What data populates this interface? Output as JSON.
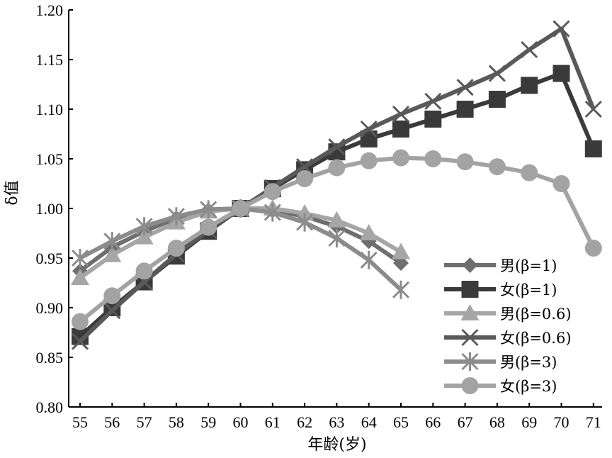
{
  "chart_data": {
    "type": "line",
    "xlabel": "年龄(岁)",
    "ylabel": "δ值",
    "xlim": [
      55,
      71
    ],
    "ylim": [
      0.8,
      1.2
    ],
    "x_ticks": [
      "55",
      "56",
      "57",
      "58",
      "59",
      "60",
      "61",
      "62",
      "63",
      "64",
      "65",
      "66",
      "67",
      "68",
      "69",
      "70",
      "71"
    ],
    "y_ticks": [
      "0.80",
      "0.85",
      "0.90",
      "0.95",
      "1.00",
      "1.05",
      "1.10",
      "1.15",
      "1.20"
    ],
    "grid": false,
    "legend_position": "right",
    "series": [
      {
        "name": "男(β=1)",
        "color": "#6e6e6e",
        "marker": "diamond",
        "x": [
          55,
          56,
          57,
          58,
          59,
          60,
          61,
          62,
          63,
          64,
          65
        ],
        "values": [
          0.937,
          0.961,
          0.977,
          0.99,
          0.998,
          1.0,
          0.998,
          0.992,
          0.982,
          0.967,
          0.945
        ]
      },
      {
        "name": "女(β=1)",
        "color": "#3a3a3a",
        "marker": "square",
        "x": [
          55,
          56,
          57,
          58,
          59,
          60,
          61,
          62,
          63,
          64,
          65,
          66,
          67,
          68,
          69,
          70,
          71
        ],
        "values": [
          0.871,
          0.9,
          0.926,
          0.952,
          0.977,
          1.0,
          1.02,
          1.039,
          1.057,
          1.07,
          1.08,
          1.09,
          1.1,
          1.11,
          1.124,
          1.136,
          1.06
        ]
      },
      {
        "name": "男(β=0.6)",
        "color": "#a6a6a6",
        "marker": "triangle",
        "x": [
          55,
          56,
          57,
          58,
          59,
          60,
          61,
          62,
          63,
          64,
          65
        ],
        "values": [
          0.93,
          0.953,
          0.971,
          0.986,
          0.997,
          1.0,
          1.0,
          0.995,
          0.988,
          0.975,
          0.956
        ]
      },
      {
        "name": "女(β=0.6)",
        "color": "#595959",
        "marker": "x",
        "x": [
          55,
          56,
          57,
          58,
          59,
          60,
          61,
          62,
          63,
          64,
          65,
          66,
          67,
          68,
          69,
          70,
          71
        ],
        "values": [
          0.866,
          0.897,
          0.926,
          0.954,
          0.978,
          1.0,
          1.021,
          1.042,
          1.062,
          1.08,
          1.095,
          1.108,
          1.122,
          1.136,
          1.16,
          1.181,
          1.1
        ]
      },
      {
        "name": "男(β=3)",
        "color": "#8c8c8c",
        "marker": "asterisk",
        "x": [
          55,
          56,
          57,
          58,
          59,
          60,
          61,
          62,
          63,
          64,
          65
        ],
        "values": [
          0.95,
          0.967,
          0.982,
          0.992,
          0.999,
          1.0,
          0.996,
          0.986,
          0.97,
          0.948,
          0.918
        ]
      },
      {
        "name": "女(β=3)",
        "color": "#a3a3a3",
        "marker": "circle",
        "x": [
          55,
          56,
          57,
          58,
          59,
          60,
          61,
          62,
          63,
          64,
          65,
          66,
          67,
          68,
          69,
          70,
          71
        ],
        "values": [
          0.886,
          0.912,
          0.937,
          0.96,
          0.981,
          1.0,
          1.017,
          1.03,
          1.041,
          1.048,
          1.051,
          1.05,
          1.047,
          1.042,
          1.036,
          1.025,
          0.96
        ]
      }
    ]
  }
}
